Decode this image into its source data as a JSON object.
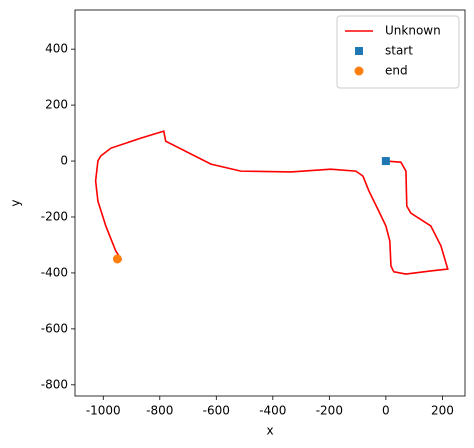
{
  "chart_data": {
    "type": "line",
    "xlabel": "x",
    "ylabel": "y",
    "x": [
      0,
      53,
      71,
      74,
      88,
      159,
      195,
      219,
      159,
      71,
      28,
      18,
      14,
      0,
      -25,
      -60,
      -81,
      -106,
      -195,
      -336,
      -513,
      -619,
      -779,
      -786,
      -867,
      -973,
      -1009,
      -1019,
      -1027,
      -1019,
      -991,
      -956,
      -935
    ],
    "series": [
      {
        "name": "Unknown",
        "color": "#ff0000",
        "values": [
          0,
          -4,
          -36,
          -161,
          -186,
          -232,
          -304,
          -386,
          -393,
          -404,
          -396,
          -375,
          -286,
          -232,
          -179,
          -107,
          -54,
          -36,
          -29,
          -39,
          -36,
          -11,
          71,
          107,
          82,
          46,
          18,
          0,
          -71,
          -143,
          -232,
          -321,
          -354
        ]
      }
    ],
    "points": [
      {
        "name": "start",
        "color": "#1f77b4",
        "marker": "square",
        "x": 0,
        "y": 0
      },
      {
        "name": "end",
        "color": "#ff7f0e",
        "marker": "circle",
        "x": -950,
        "y": -350
      }
    ],
    "xlim": [
      -1100,
      280
    ],
    "ylim": [
      -840,
      540
    ],
    "xticks": [
      -1000,
      -800,
      -600,
      -400,
      -200,
      0,
      200
    ],
    "yticks": [
      -800,
      -600,
      -400,
      -200,
      0,
      200,
      400
    ],
    "legend": "upper right"
  }
}
